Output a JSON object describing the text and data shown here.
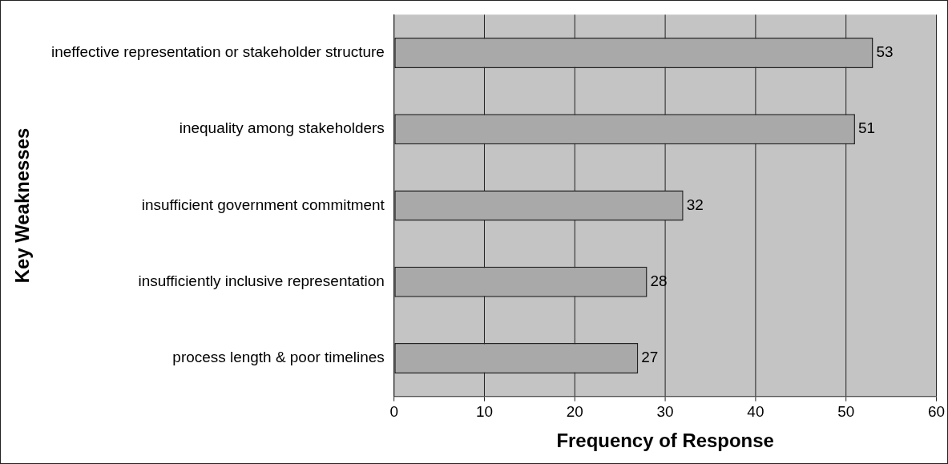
{
  "chart_data": {
    "type": "bar",
    "orientation": "horizontal",
    "xlabel": "Frequency of Response",
    "ylabel": "Key Weaknesses",
    "categories": [
      "ineffective representation or stakeholder structure",
      "inequality among stakeholders",
      "insufficient government commitment",
      "insufficiently inclusive representation",
      "process length & poor timelines"
    ],
    "values": [
      53,
      51,
      32,
      28,
      27
    ],
    "color": "#a9a9a9",
    "xlim": [
      0,
      60
    ],
    "xticks": [
      0,
      10,
      20,
      30,
      40,
      50,
      60
    ],
    "grid": "x",
    "data_labels": true,
    "legend": false
  }
}
